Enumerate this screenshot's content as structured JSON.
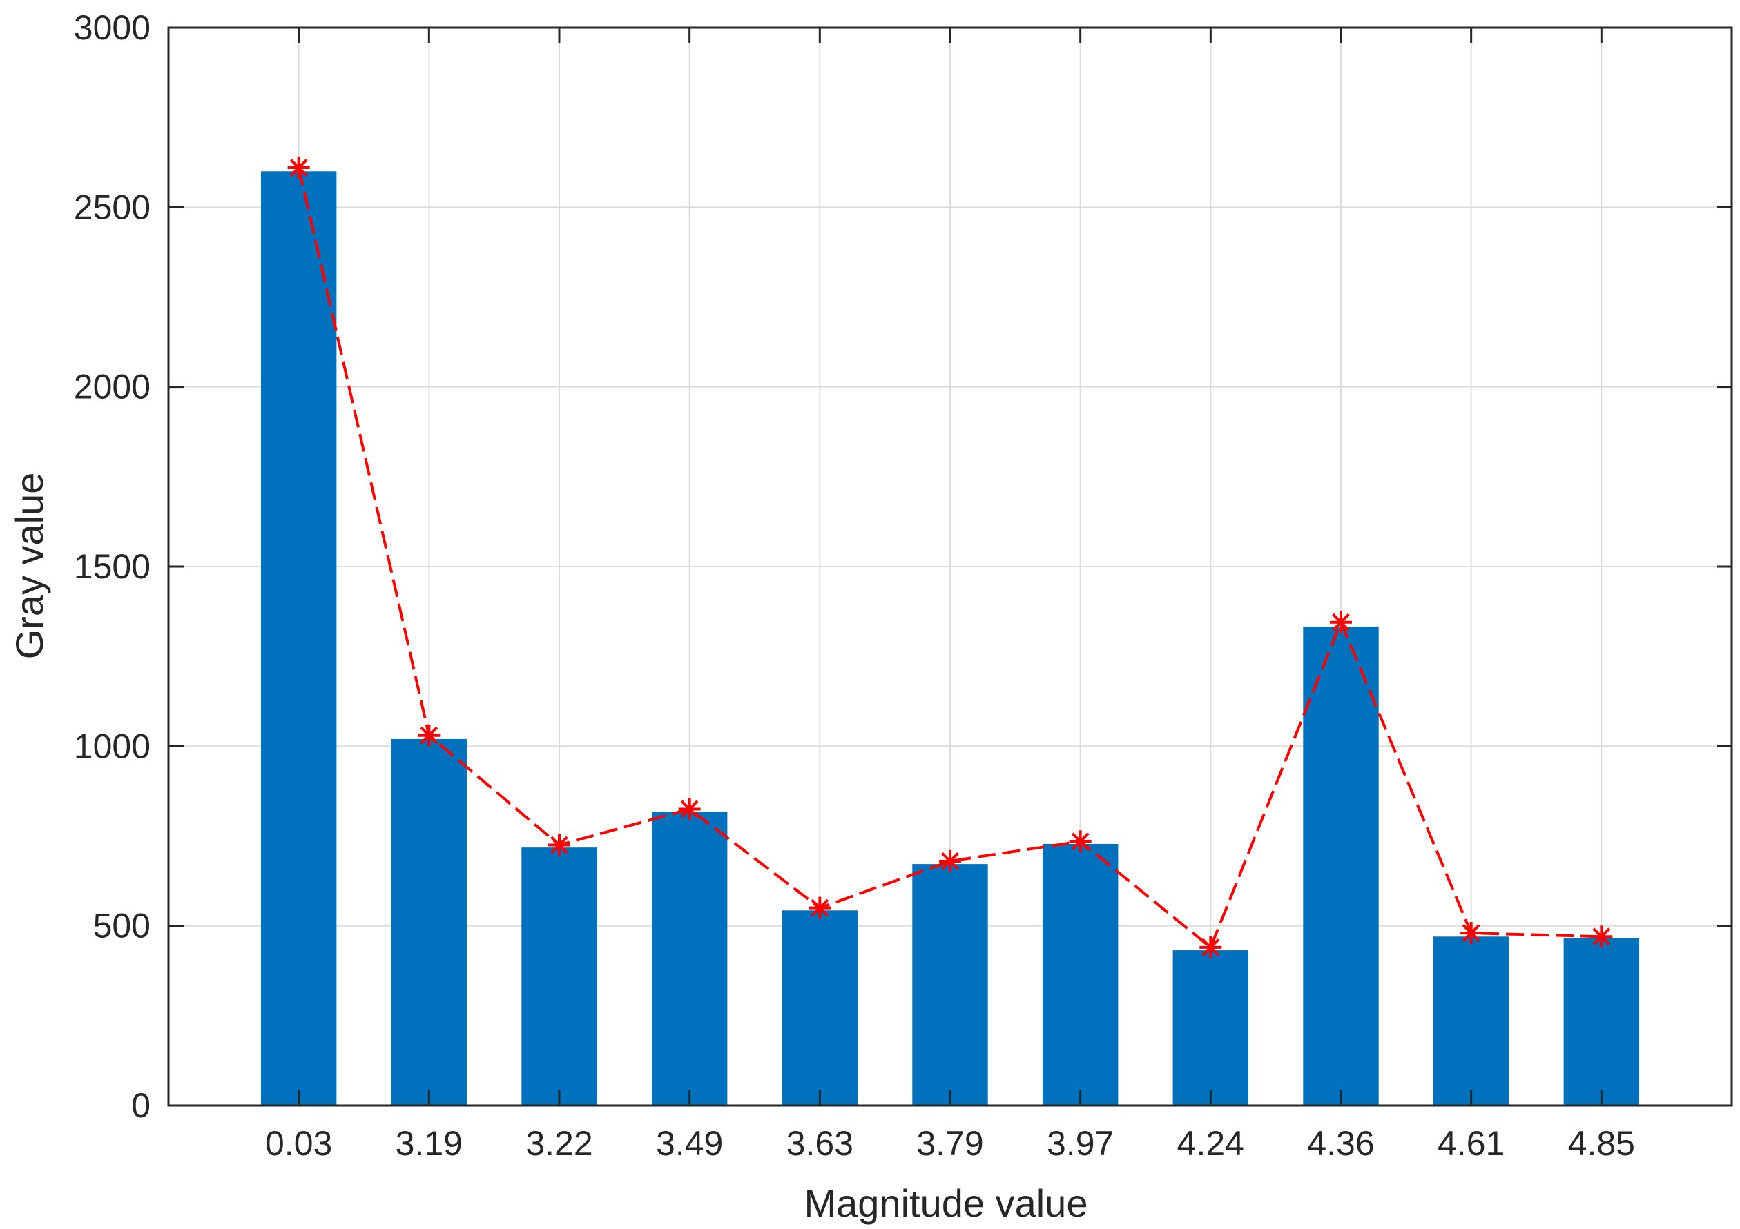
{
  "chart_data": {
    "type": "bar",
    "title": "",
    "xlabel": "Magnitude value",
    "ylabel": "Gray value",
    "categories": [
      "0.03",
      "3.19",
      "3.22",
      "3.49",
      "3.63",
      "3.79",
      "3.97",
      "4.24",
      "4.36",
      "4.61",
      "4.85"
    ],
    "ylim": [
      0,
      3000
    ],
    "yticks": [
      0,
      500,
      1000,
      1500,
      2000,
      2500,
      3000
    ],
    "grid": true,
    "series": [
      {
        "type": "bar",
        "values": [
          2600,
          1020,
          718,
          818,
          543,
          672,
          728,
          432,
          1333,
          470,
          465
        ],
        "color": "#0072BD"
      },
      {
        "type": "line",
        "marker": "asterisk",
        "line_style": "dashed",
        "values": [
          2610,
          1030,
          725,
          825,
          550,
          680,
          735,
          440,
          1345,
          480,
          470
        ],
        "color": "#FF0000"
      }
    ]
  }
}
